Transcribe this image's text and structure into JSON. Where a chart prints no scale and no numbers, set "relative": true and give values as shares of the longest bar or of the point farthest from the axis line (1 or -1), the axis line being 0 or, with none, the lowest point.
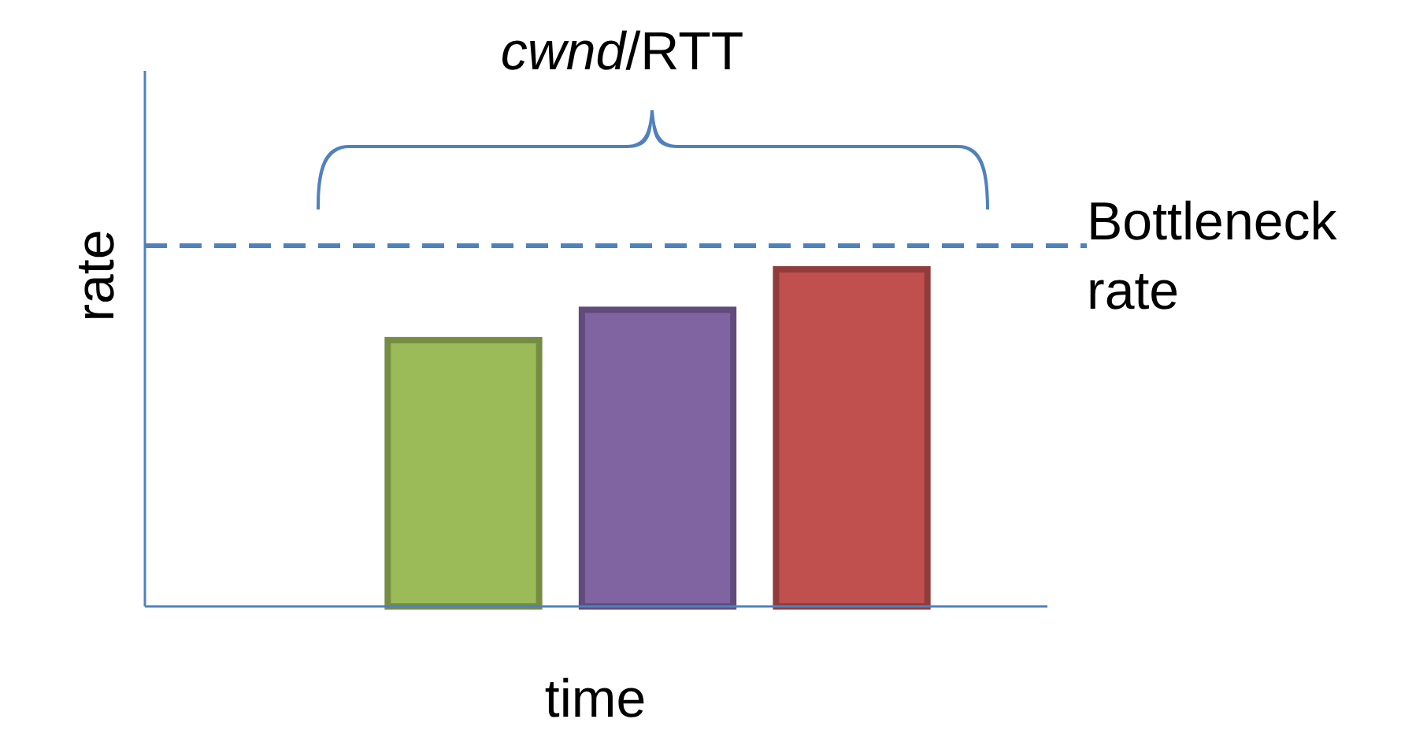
{
  "chart_data": {
    "type": "bar",
    "relative": true,
    "xlabel": "time",
    "ylabel": "rate",
    "categories": [
      null,
      null,
      null
    ],
    "values": [
      0.79,
      0.88,
      1
    ],
    "colors": [
      "#9bbb59",
      "#8064a2",
      "#c0504d"
    ],
    "ref_lines": [
      {
        "axis": "y",
        "value": 1.07,
        "label": "Bottleneck rate",
        "color": "#4f81bd",
        "line_style": "dashed"
      }
    ],
    "annotations": [
      "cwnd/RTT"
    ]
  }
}
